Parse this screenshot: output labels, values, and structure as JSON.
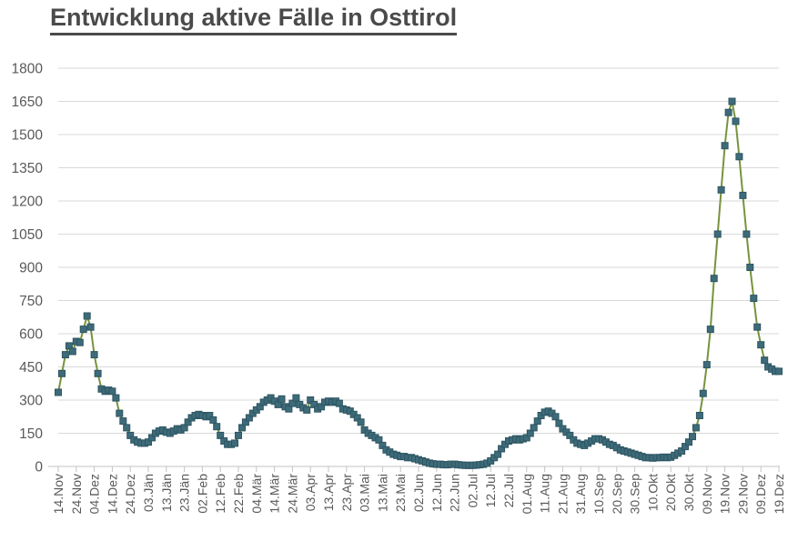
{
  "page": {
    "title": "Entwicklung aktive Fälle in Osttirol"
  },
  "colors": {
    "background": "#ffffff",
    "title_text": "#4a4a4a",
    "axis_label": "#595959",
    "gridline": "#d9d9d9",
    "axis_line": "#c3c3c3",
    "tick_mark": "#c3c3c3",
    "series_line": "#77933C",
    "marker_fill": "#3E6B79",
    "marker_stroke": "#2E5562"
  },
  "chart_data": {
    "type": "line",
    "title": "Entwicklung aktive Fälle in Osttirol",
    "xlabel": "",
    "ylabel": "",
    "ylim": [
      0,
      1800
    ],
    "yticks": [
      0,
      150,
      300,
      450,
      600,
      750,
      900,
      1050,
      1200,
      1350,
      1500,
      1650,
      1800
    ],
    "grid": "horizontal",
    "legend": "none",
    "marker": "square",
    "x_tick_labels": [
      "14.Nov",
      "24.Nov",
      "04.Dez",
      "14.Dez",
      "24.Dez",
      "03.Jän",
      "13.Jän",
      "23.Jän",
      "02.Feb",
      "12.Feb",
      "22.Feb",
      "04.Mär",
      "14.Mär",
      "24.Mär",
      "03.Apr",
      "13.Apr",
      "23.Apr",
      "03.Mai",
      "13.Mai",
      "23.Mai",
      "02.Jun",
      "12.Jun",
      "22.Jun",
      "02.Jul",
      "12.Jul",
      "22.Jul",
      "01.Aug",
      "11.Aug",
      "21.Aug",
      "31.Aug",
      "10.Sep",
      "20.Sep",
      "30.Sep",
      "10.Okt",
      "20.Okt",
      "30.Okt",
      "09.Nov",
      "19.Nov",
      "29.Nov",
      "09.Dez",
      "19.Dez"
    ],
    "x_tick_interval_days": 10,
    "x_axis_total_days": 400,
    "series": [
      {
        "name": "aktive Fälle",
        "x_unit": "days since 14.Nov (first tick), step 2",
        "day_step": 2,
        "values": [
          335,
          420,
          505,
          545,
          520,
          565,
          560,
          620,
          680,
          630,
          505,
          420,
          350,
          340,
          345,
          340,
          310,
          240,
          205,
          175,
          140,
          120,
          110,
          105,
          105,
          110,
          130,
          150,
          160,
          165,
          155,
          150,
          160,
          170,
          165,
          175,
          200,
          220,
          230,
          235,
          230,
          225,
          230,
          210,
          180,
          140,
          115,
          100,
          100,
          105,
          140,
          175,
          200,
          220,
          240,
          255,
          270,
          290,
          300,
          310,
          295,
          280,
          305,
          270,
          260,
          285,
          310,
          280,
          265,
          255,
          300,
          280,
          260,
          270,
          290,
          295,
          290,
          295,
          285,
          260,
          255,
          250,
          235,
          220,
          200,
          165,
          150,
          140,
          130,
          120,
          95,
          75,
          65,
          55,
          50,
          45,
          45,
          40,
          40,
          35,
          30,
          25,
          20,
          15,
          12,
          10,
          10,
          8,
          8,
          10,
          10,
          8,
          6,
          5,
          5,
          5,
          6,
          8,
          10,
          15,
          25,
          40,
          55,
          80,
          100,
          115,
          120,
          125,
          120,
          125,
          130,
          150,
          175,
          205,
          230,
          245,
          250,
          240,
          225,
          195,
          170,
          155,
          140,
          120,
          105,
          100,
          95,
          105,
          115,
          125,
          125,
          120,
          110,
          100,
          95,
          85,
          75,
          70,
          65,
          60,
          55,
          50,
          45,
          40,
          40,
          38,
          40,
          40,
          42,
          40,
          42,
          50,
          60,
          70,
          90,
          110,
          135,
          175,
          230,
          330,
          460,
          620,
          850,
          1050,
          1250,
          1450,
          1600,
          1650,
          1560,
          1400,
          1225,
          1050,
          900,
          760,
          630,
          550,
          480,
          450,
          440,
          430,
          430
        ]
      }
    ]
  }
}
